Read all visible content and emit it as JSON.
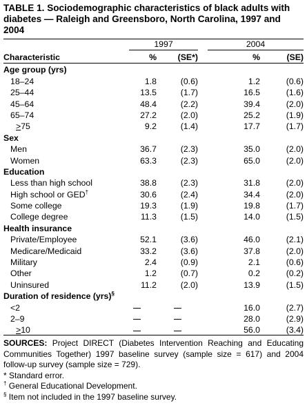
{
  "title": "TABLE 1. Sociodemographic characteristics of black adults with diabetes — Raleigh and Greensboro, North Carolina, 1997 and 2004",
  "columns": {
    "year1": "1997",
    "year2": "2004",
    "characteristic": "Characteristic",
    "pct1": "%",
    "se1": "(SE*)",
    "pct2": "%",
    "se2": "(SE)"
  },
  "sections": [
    {
      "label": "Age group (yrs)",
      "rows": [
        {
          "label": "18–24",
          "p97": "1.8",
          "se97": "(0.6)",
          "p04": "1.2",
          "se04": "(0.6)"
        },
        {
          "label": "25–44",
          "p97": "13.5",
          "se97": "(1.7)",
          "p04": "16.5",
          "se04": "(1.6)"
        },
        {
          "label": "45–64",
          "p97": "48.4",
          "se97": "(2.2)",
          "p04": "39.4",
          "se04": "(2.0)"
        },
        {
          "label": "65–74",
          "p97": "27.2",
          "se97": "(2.0)",
          "p04": "25.2",
          "se04": "(1.9)"
        },
        {
          "label": ">75",
          "p97": "9.2",
          "se97": "(1.4)",
          "p04": "17.7",
          "se04": "(1.7)"
        }
      ]
    },
    {
      "label": "Sex",
      "rows": [
        {
          "label": "Men",
          "p97": "36.7",
          "se97": "(2.3)",
          "p04": "35.0",
          "se04": "(2.0)"
        },
        {
          "label": "Women",
          "p97": "63.3",
          "se97": "(2.3)",
          "p04": "65.0",
          "se04": "(2.0)"
        }
      ]
    },
    {
      "label": "Education",
      "rows": [
        {
          "label": "Less than high school",
          "p97": "38.8",
          "se97": "(2.3)",
          "p04": "31.8",
          "se04": "(2.0)"
        },
        {
          "label": "High school or GED",
          "sup": "†",
          "p97": "30.6",
          "se97": "(2.4)",
          "p04": "34.4",
          "se04": "(2.0)"
        },
        {
          "label": "Some college",
          "p97": "19.3",
          "se97": "(1.9)",
          "p04": "19.8",
          "se04": "(1.7)"
        },
        {
          "label": "College degree",
          "p97": "11.3",
          "se97": "(1.5)",
          "p04": "14.0",
          "se04": "(1.5)"
        }
      ]
    },
    {
      "label": "Health insurance",
      "rows": [
        {
          "label": "Private/Employee",
          "p97": "52.1",
          "se97": "(3.6)",
          "p04": "46.0",
          "se04": "(2.1)"
        },
        {
          "label": "Medicare/Medicaid",
          "p97": "33.2",
          "se97": "(3.6)",
          "p04": "37.8",
          "se04": "(2.0)"
        },
        {
          "label": "Military",
          "p97": "2.4",
          "se97": "(0.9)",
          "p04": "2.1",
          "se04": "(0.6)"
        },
        {
          "label": "Other",
          "p97": "1.2",
          "se97": "(0.7)",
          "p04": "0.2",
          "se04": "(0.2)"
        },
        {
          "label": "Uninsured",
          "p97": "11.2",
          "se97": "(2.0)",
          "p04": "13.9",
          "se04": "(1.5)"
        }
      ]
    },
    {
      "label": "Duration of residence (yrs)",
      "sup": "§",
      "rows": [
        {
          "label": "<2",
          "p97": "—",
          "se97": "—",
          "p04": "16.0",
          "se04": "(2.7)"
        },
        {
          "label": "2–9",
          "p97": "—",
          "se97": "—",
          "p04": "28.0",
          "se04": "(2.9)"
        },
        {
          "label": ">10",
          "p97": "—",
          "se97": "—",
          "p04": "56.0",
          "se04": "(3.4)"
        }
      ]
    }
  ],
  "footer": {
    "sources_label": "SOURCES:",
    "sources_text": " Project DIRECT (Diabetes Intervention Reaching and Educating Communities Together) 1997 baseline survey (sample size = 617) and 2004 follow-up survey (sample size = 729).",
    "note1": "* Standard error.",
    "note2_mark": "†",
    "note2": " General Educational Development.",
    "note3_mark": "§",
    "note3": " Item not included in the 1997 baseline survey."
  }
}
